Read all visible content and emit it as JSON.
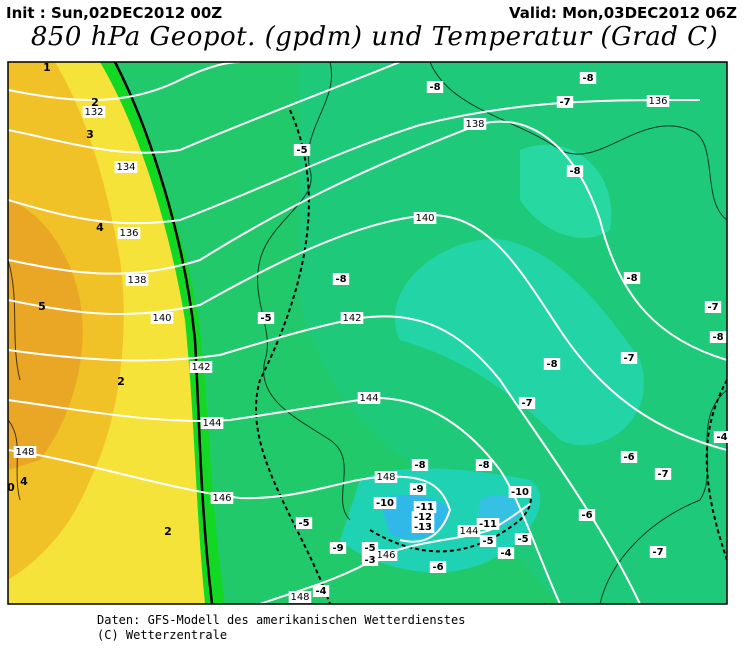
{
  "header": {
    "init": "Init : Sun,02DEC2012 00Z",
    "valid": "Valid: Mon,03DEC2012 06Z",
    "title": "850 hPa Geopot. (gpdm) und Temperatur (Grad C)"
  },
  "map": {
    "geopotential_labels": [
      132,
      134,
      136,
      138,
      140,
      142,
      144,
      146,
      148,
      136,
      138,
      140,
      142,
      144,
      148,
      146,
      144,
      148
    ],
    "temperature_labels": [
      -5,
      -8,
      -8,
      -7,
      -8,
      -8,
      -5,
      -8,
      -8,
      -7,
      -7,
      -8,
      -7,
      -8,
      -8,
      -10,
      -9,
      -11,
      -12,
      -13,
      -10,
      -11,
      -5,
      -9,
      -5,
      -3,
      -6,
      -5,
      -4,
      -5,
      -6,
      -6,
      -7,
      -7,
      -4,
      -4
    ],
    "isotherm_labels": [
      1,
      2,
      3,
      4,
      5,
      2,
      4,
      2,
      0
    ]
  },
  "footer": {
    "lines": [
      "Daten: GFS-Modell des amerikanischen Wetterdienstes",
      "(C) Wetterzentrale"
    ]
  }
}
